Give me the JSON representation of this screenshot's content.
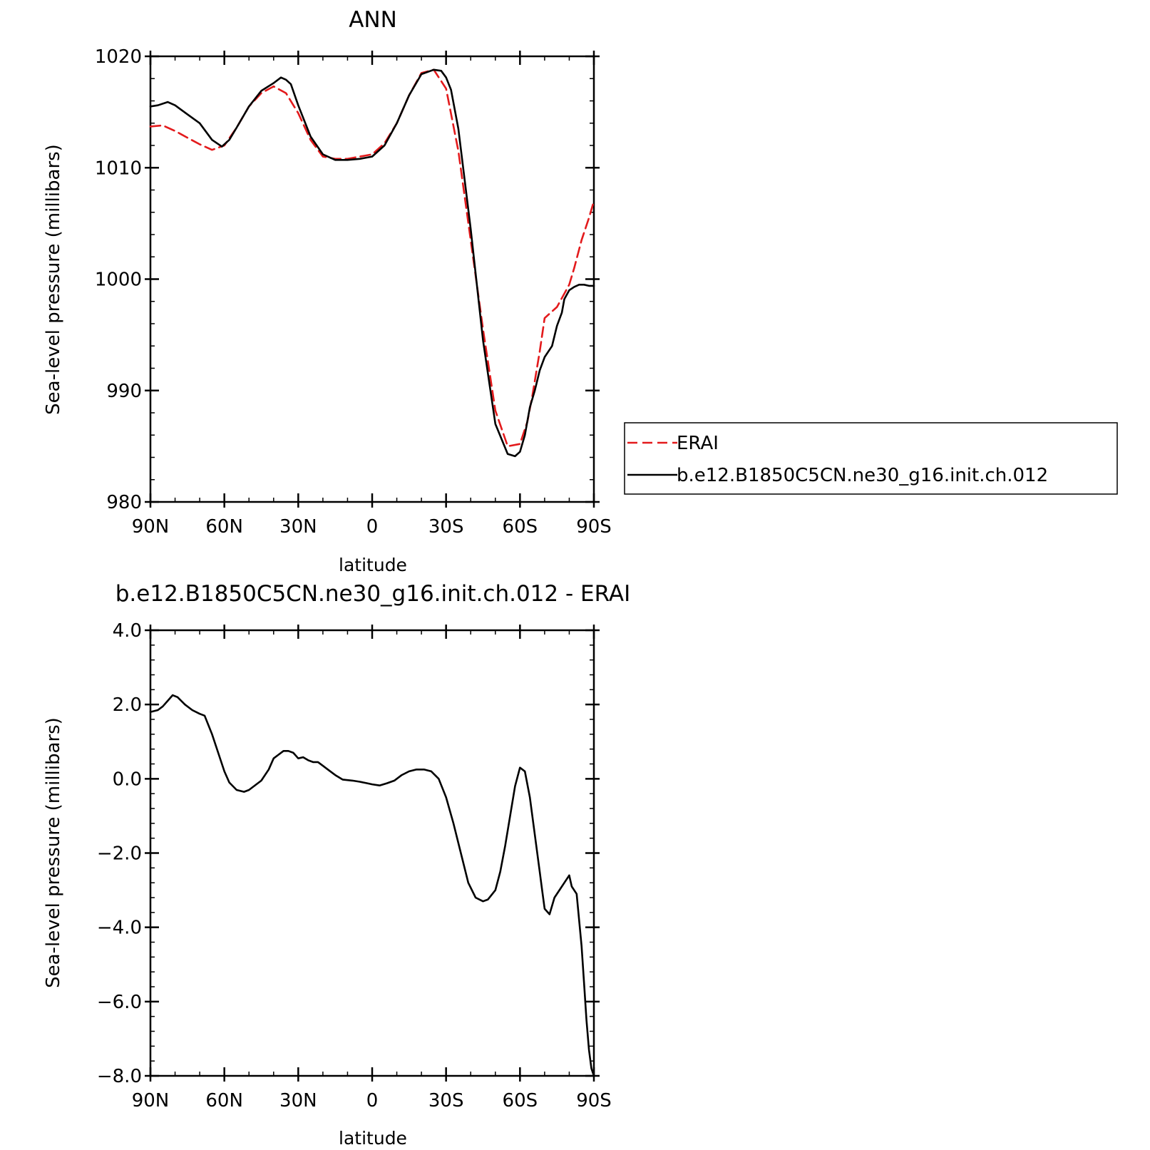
{
  "chart_data": [
    {
      "type": "line",
      "title": "ANN",
      "xlabel": "latitude",
      "ylabel": "Sea-level pressure (millibars)",
      "xlim": [
        90,
        -90
      ],
      "ylim": [
        980,
        1020
      ],
      "xticks": [
        90,
        60,
        30,
        0,
        -30,
        -60,
        -90
      ],
      "xtick_labels": [
        "90N",
        "60N",
        "30N",
        "0",
        "30S",
        "60S",
        "90S"
      ],
      "yticks": [
        980,
        990,
        1000,
        1010,
        1020
      ],
      "ytick_labels": [
        "980",
        "990",
        "1000",
        "1010",
        "1020"
      ],
      "legend_position": "right",
      "series": [
        {
          "name": "ERAI",
          "color": "#e31a1c",
          "dash": "dashed",
          "x": [
            90,
            85,
            80,
            75,
            70,
            65,
            60,
            55,
            50,
            45,
            40,
            35,
            30,
            25,
            20,
            15,
            10,
            5,
            0,
            -5,
            -10,
            -15,
            -20,
            -25,
            -30,
            -35,
            -40,
            -45,
            -50,
            -55,
            -60,
            -63,
            -65,
            -68,
            -70,
            -75,
            -80,
            -82,
            -85,
            -88,
            -90
          ],
          "y": [
            1013.7,
            1013.8,
            1013.3,
            1012.7,
            1012.1,
            1011.6,
            1012.0,
            1013.6,
            1015.5,
            1016.7,
            1017.3,
            1016.7,
            1014.9,
            1012.5,
            1011.0,
            1010.8,
            1010.8,
            1011.0,
            1011.2,
            1012.2,
            1014.0,
            1016.5,
            1018.5,
            1018.8,
            1017.1,
            1011.5,
            1003.5,
            995.5,
            988.2,
            985.0,
            985.2,
            987.2,
            989.5,
            993.5,
            996.5,
            997.5,
            999.5,
            1001.0,
            1003.5,
            1005.5,
            1007.0
          ]
        },
        {
          "name": "b.e12.B1850C5CN.ne30_g16.init.ch.012",
          "color": "#000000",
          "dash": "solid",
          "x": [
            90,
            87,
            83,
            80,
            75,
            70,
            65,
            61,
            58,
            55,
            50,
            45,
            40,
            37,
            35,
            33,
            30,
            25,
            20,
            15,
            10,
            5,
            0,
            -5,
            -10,
            -15,
            -20,
            -25,
            -28,
            -30,
            -32,
            -35,
            -40,
            -45,
            -50,
            -55,
            -58,
            -60,
            -62,
            -64,
            -66,
            -68,
            -70,
            -73,
            -75,
            -77,
            -78,
            -80,
            -82,
            -84,
            -86,
            -88,
            -90
          ],
          "y": [
            1015.5,
            1015.6,
            1015.9,
            1015.6,
            1014.8,
            1014.0,
            1012.5,
            1011.9,
            1012.5,
            1013.6,
            1015.5,
            1016.9,
            1017.6,
            1018.1,
            1017.9,
            1017.5,
            1015.6,
            1012.8,
            1011.2,
            1010.7,
            1010.7,
            1010.8,
            1011.0,
            1012.0,
            1014.0,
            1016.5,
            1018.4,
            1018.8,
            1018.7,
            1018.1,
            1017.0,
            1013.5,
            1004.5,
            994.5,
            987.0,
            984.3,
            984.1,
            984.5,
            986.0,
            988.5,
            990.0,
            991.8,
            993.0,
            994.0,
            995.8,
            997.0,
            998.2,
            999.0,
            999.3,
            999.5,
            999.5,
            999.4,
            999.4
          ]
        }
      ]
    },
    {
      "type": "line",
      "title": "b.e12.B1850C5CN.ne30_g16.init.ch.012 - ERAI",
      "xlabel": "latitude",
      "ylabel": "Sea-level pressure (millibars)",
      "xlim": [
        90,
        -90
      ],
      "ylim": [
        -8.0,
        4.0
      ],
      "xticks": [
        90,
        60,
        30,
        0,
        -30,
        -60,
        -90
      ],
      "xtick_labels": [
        "90N",
        "60N",
        "30N",
        "0",
        "30S",
        "60S",
        "90S"
      ],
      "yticks": [
        -8.0,
        -6.0,
        -4.0,
        -2.0,
        0.0,
        2.0,
        4.0
      ],
      "ytick_labels": [
        "−8.0",
        "−6.0",
        "−4.0",
        "−2.0",
        "0.0",
        "2.0",
        "4.0"
      ],
      "series": [
        {
          "name": "",
          "color": "#000000",
          "dash": "solid",
          "x": [
            90,
            87,
            85,
            83,
            81,
            79,
            76,
            73,
            70,
            68,
            65,
            62,
            60,
            58,
            55,
            52,
            50,
            45,
            42,
            40,
            38,
            36,
            34,
            32,
            30,
            28,
            26,
            24,
            22,
            20,
            18,
            15,
            12,
            8,
            5,
            2,
            0,
            -3,
            -6,
            -9,
            -12,
            -15,
            -18,
            -21,
            -24,
            -27,
            -30,
            -33,
            -36,
            -39,
            -42,
            -45,
            -47,
            -50,
            -52,
            -54,
            -56,
            -58,
            -60,
            -62,
            -64,
            -66,
            -68,
            -69,
            -70,
            -72,
            -74,
            -76,
            -78,
            -80,
            -81,
            -83,
            -85,
            -86,
            -87,
            -88,
            -89,
            -90
          ],
          "y": [
            1.8,
            1.85,
            1.95,
            2.1,
            2.25,
            2.2,
            2.0,
            1.85,
            1.75,
            1.7,
            1.2,
            0.6,
            0.2,
            -0.1,
            -0.3,
            -0.35,
            -0.3,
            -0.05,
            0.25,
            0.55,
            0.65,
            0.75,
            0.75,
            0.7,
            0.55,
            0.58,
            0.5,
            0.45,
            0.45,
            0.35,
            0.25,
            0.1,
            -0.02,
            -0.05,
            -0.08,
            -0.12,
            -0.15,
            -0.18,
            -0.12,
            -0.05,
            0.1,
            0.2,
            0.25,
            0.25,
            0.2,
            0.0,
            -0.5,
            -1.2,
            -2.0,
            -2.8,
            -3.2,
            -3.3,
            -3.25,
            -3.0,
            -2.5,
            -1.8,
            -1.0,
            -0.2,
            0.3,
            0.2,
            -0.5,
            -1.5,
            -2.5,
            -3.0,
            -3.5,
            -3.65,
            -3.2,
            -3.0,
            -2.8,
            -2.6,
            -2.9,
            -3.1,
            -4.5,
            -5.5,
            -6.5,
            -7.3,
            -7.8,
            -8.0
          ]
        }
      ]
    }
  ],
  "legend": {
    "entries": [
      {
        "label": "ERAI",
        "color": "#e31a1c",
        "dash": "dashed"
      },
      {
        "label": "b.e12.B1850C5CN.ne30_g16.init.ch.012",
        "color": "#000000",
        "dash": "solid"
      }
    ]
  }
}
